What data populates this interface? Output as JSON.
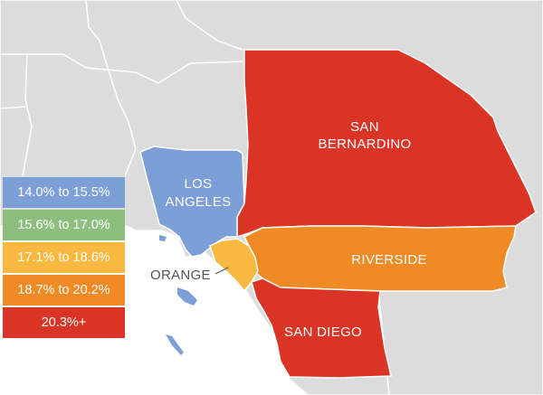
{
  "colors": {
    "background_land": "#dcdcdc",
    "boundary": "#ffffff",
    "bin_1": "#7b9fd6",
    "bin_2": "#8cbf7e",
    "bin_3": "#f9b83f",
    "bin_4": "#f08a24",
    "bin_5": "#d93425"
  },
  "legend": {
    "items": [
      {
        "label": "14.0% to 15.5%",
        "color": "#7b9fd6"
      },
      {
        "label": "15.6% to 17.0%",
        "color": "#8cbf7e"
      },
      {
        "label": "17.1% to 18.6%",
        "color": "#f9b83f"
      },
      {
        "label": "18.7% to 20.2%",
        "color": "#f08a24"
      },
      {
        "label": "20.3%+",
        "color": "#d93425"
      }
    ]
  },
  "counties": {
    "san_bernardino": {
      "label_line1": "SAN",
      "label_line2": "BERNARDINO",
      "color": "#d93425"
    },
    "los_angeles": {
      "label_line1": "LOS",
      "label_line2": "ANGELES",
      "color": "#7b9fd6"
    },
    "riverside": {
      "label": "RIVERSIDE",
      "color": "#f08a24"
    },
    "orange": {
      "label": "ORANGE",
      "color": "#f9b83f"
    },
    "san_diego": {
      "label": "SAN DIEGO",
      "color": "#d93425"
    }
  }
}
